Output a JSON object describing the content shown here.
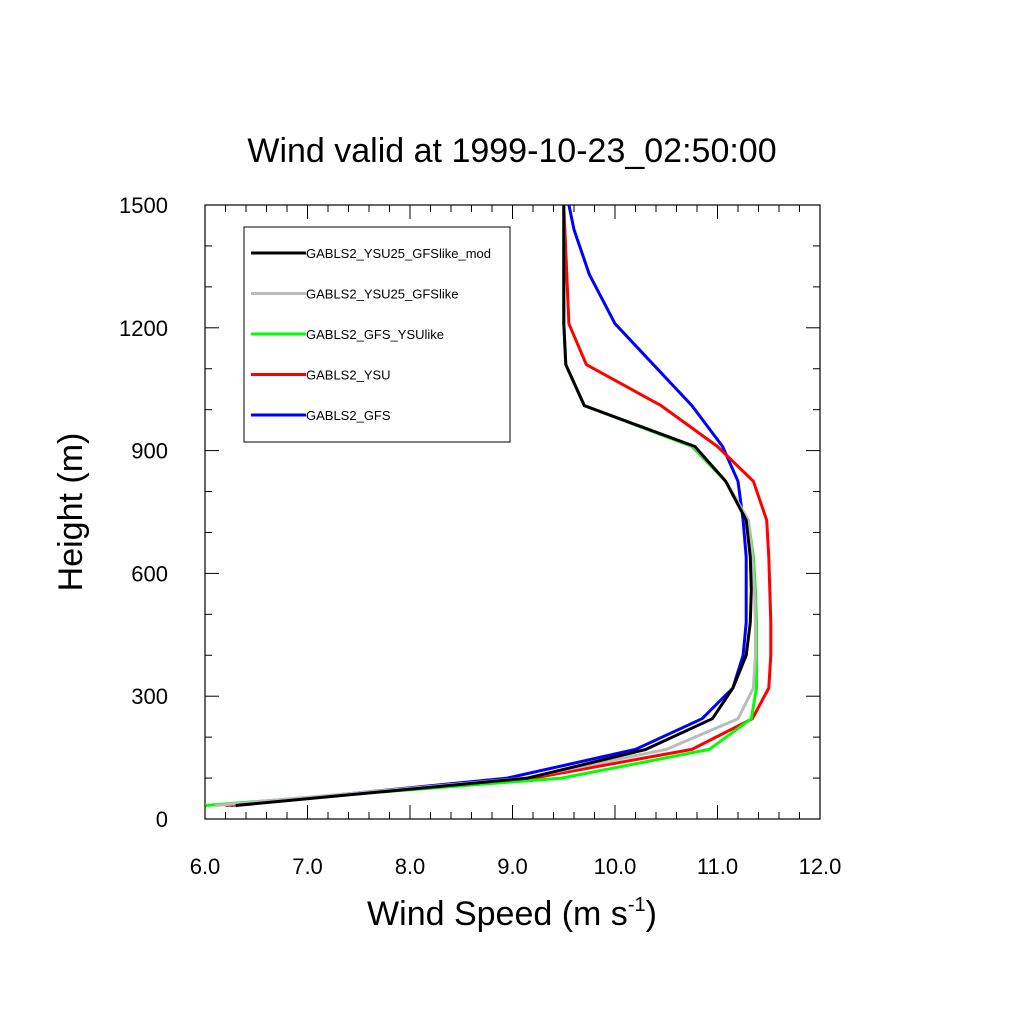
{
  "chart_data": {
    "type": "line",
    "title": "Wind valid at 1999-10-23_02:50:00",
    "xlabel": "Wind Speed (m s",
    "xlabel_sup": "-1",
    "xlabel_close": ")",
    "ylabel": "Height (m)",
    "xlim": [
      6.0,
      12.0
    ],
    "ylim": [
      0,
      1500
    ],
    "xticks": [
      "6.0",
      "7.0",
      "8.0",
      "9.0",
      "10.0",
      "11.0",
      "12.0"
    ],
    "yticks": [
      "0",
      "300",
      "600",
      "900",
      "1200",
      "1500"
    ],
    "grid": false,
    "legend_position": "top-left",
    "series": [
      {
        "name": "GABLS2_YSU25_GFSlike_mod",
        "color": "#000000",
        "x": [
          6.3,
          9.15,
          10.3,
          10.95,
          11.15,
          11.28,
          11.32,
          11.33,
          11.32,
          11.28,
          11.08,
          10.78,
          9.7,
          9.52,
          9.5,
          9.5
        ],
        "y": [
          33,
          100,
          170,
          245,
          320,
          400,
          480,
          560,
          640,
          730,
          825,
          910,
          1010,
          1110,
          1210,
          1500
        ]
      },
      {
        "name": "GABLS2_YSU25_GFSlike",
        "color": "#bbbbbb",
        "x": [
          6.1,
          9.12,
          10.5,
          11.2,
          11.35,
          11.37,
          11.37,
          11.36,
          11.34,
          11.3,
          11.08,
          10.77,
          9.7,
          9.52,
          9.5,
          9.5
        ],
        "y": [
          33,
          100,
          170,
          245,
          320,
          400,
          480,
          560,
          640,
          730,
          825,
          910,
          1010,
          1110,
          1210,
          1500
        ]
      },
      {
        "name": "GABLS2_GFS_YSUlike",
        "color": "#00ff00",
        "x": [
          6.0,
          9.48,
          10.92,
          11.33,
          11.38,
          11.38,
          11.38,
          11.37,
          11.35,
          11.3,
          11.08,
          10.75,
          9.7,
          9.52,
          9.5,
          9.5
        ],
        "y": [
          33,
          100,
          170,
          245,
          320,
          400,
          480,
          560,
          640,
          730,
          825,
          910,
          1010,
          1110,
          1210,
          1500
        ]
      },
      {
        "name": "GABLS2_YSU",
        "color": "#ff0000",
        "x": [
          6.2,
          9.2,
          10.75,
          11.34,
          11.5,
          11.52,
          11.52,
          11.51,
          11.5,
          11.48,
          11.35,
          11.0,
          10.45,
          9.72,
          9.55,
          9.5
        ],
        "y": [
          33,
          100,
          170,
          245,
          320,
          400,
          480,
          560,
          640,
          730,
          825,
          910,
          1010,
          1110,
          1210,
          1500
        ]
      },
      {
        "name": "GABLS2_GFS",
        "color": "#0000ff",
        "x": [
          6.25,
          8.95,
          10.2,
          10.85,
          11.15,
          11.25,
          11.28,
          11.28,
          11.28,
          11.25,
          11.2,
          11.05,
          10.75,
          10.0,
          9.75,
          9.6,
          9.55
        ],
        "y": [
          33,
          100,
          170,
          245,
          320,
          400,
          480,
          560,
          640,
          730,
          825,
          910,
          1010,
          1210,
          1330,
          1440,
          1500
        ]
      }
    ]
  }
}
